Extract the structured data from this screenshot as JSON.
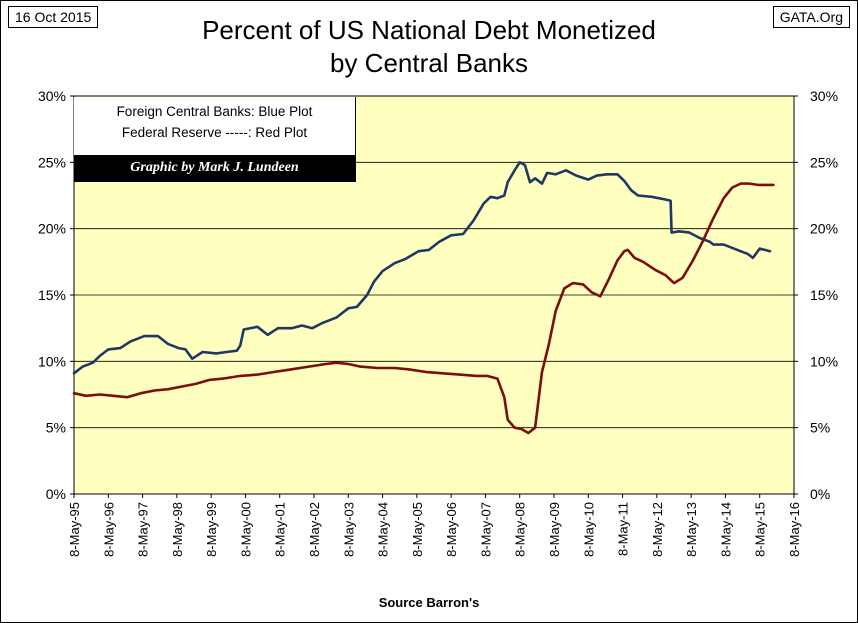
{
  "header": {
    "date": "16 Oct 2015",
    "source": "GATA.Org",
    "title_line1": "Percent of US National Debt Monetized",
    "title_line2": "by Central Banks"
  },
  "legend": {
    "line1": "Foreign Central Banks:  Blue Plot",
    "line2": "Federal Reserve -----:  Red Plot",
    "credit": "Graphic by Mark J. Lundeen"
  },
  "colors": {
    "plot_background": "#FFFFC0",
    "foreign_central_banks": "#1F3864",
    "federal_reserve": "#7B0E0E",
    "grid": "#000000"
  },
  "chart_data": {
    "type": "line",
    "title": "Percent of US National Debt Monetized by Central Banks",
    "xlabel": "Source Barron's",
    "ylabel": "",
    "ylim": [
      0,
      30
    ],
    "x_range": [
      1995.35,
      2016.35
    ],
    "grid": "horizontal",
    "legend_position": "top-left",
    "y_ticks": [
      "0%",
      "5%",
      "10%",
      "15%",
      "20%",
      "25%",
      "30%"
    ],
    "x_ticks": [
      "8-May-95",
      "8-May-96",
      "8-May-97",
      "8-May-98",
      "8-May-99",
      "8-May-00",
      "8-May-01",
      "8-May-02",
      "8-May-03",
      "8-May-04",
      "8-May-05",
      "8-May-06",
      "8-May-07",
      "8-May-08",
      "8-May-09",
      "8-May-10",
      "8-May-11",
      "8-May-12",
      "8-May-13",
      "8-May-14",
      "8-May-15",
      "8-May-16"
    ],
    "series": [
      {
        "key": "foreign",
        "points": [
          [
            1995.35,
            9.1
          ],
          [
            1995.6,
            9.6
          ],
          [
            1995.9,
            9.9
          ],
          [
            1996.1,
            10.4
          ],
          [
            1996.35,
            10.9
          ],
          [
            1996.7,
            11.0
          ],
          [
            1997.0,
            11.5
          ],
          [
            1997.4,
            11.9
          ],
          [
            1997.8,
            11.9
          ],
          [
            1998.1,
            11.3
          ],
          [
            1998.4,
            11.0
          ],
          [
            1998.6,
            10.9
          ],
          [
            1998.8,
            10.2
          ],
          [
            1999.1,
            10.7
          ],
          [
            1999.5,
            10.6
          ],
          [
            1999.8,
            10.7
          ],
          [
            2000.1,
            10.8
          ],
          [
            2000.2,
            11.2
          ],
          [
            2000.3,
            12.4
          ],
          [
            2000.7,
            12.6
          ],
          [
            2001.0,
            12.0
          ],
          [
            2001.3,
            12.5
          ],
          [
            2001.7,
            12.5
          ],
          [
            2002.0,
            12.7
          ],
          [
            2002.3,
            12.5
          ],
          [
            2002.6,
            12.9
          ],
          [
            2003.0,
            13.3
          ],
          [
            2003.35,
            14.0
          ],
          [
            2003.6,
            14.1
          ],
          [
            2003.9,
            15.0
          ],
          [
            2004.1,
            16.0
          ],
          [
            2004.35,
            16.8
          ],
          [
            2004.7,
            17.4
          ],
          [
            2005.0,
            17.7
          ],
          [
            2005.4,
            18.3
          ],
          [
            2005.7,
            18.4
          ],
          [
            2006.0,
            19.0
          ],
          [
            2006.35,
            19.5
          ],
          [
            2006.7,
            19.6
          ],
          [
            2007.0,
            20.6
          ],
          [
            2007.3,
            21.9
          ],
          [
            2007.5,
            22.4
          ],
          [
            2007.7,
            22.3
          ],
          [
            2007.9,
            22.5
          ],
          [
            2008.0,
            23.5
          ],
          [
            2008.2,
            24.4
          ],
          [
            2008.35,
            25.0
          ],
          [
            2008.5,
            24.8
          ],
          [
            2008.65,
            23.5
          ],
          [
            2008.8,
            23.8
          ],
          [
            2009.0,
            23.4
          ],
          [
            2009.15,
            24.2
          ],
          [
            2009.4,
            24.1
          ],
          [
            2009.7,
            24.4
          ],
          [
            2010.0,
            24.0
          ],
          [
            2010.35,
            23.7
          ],
          [
            2010.6,
            24.0
          ],
          [
            2010.9,
            24.1
          ],
          [
            2011.2,
            24.1
          ],
          [
            2011.4,
            23.6
          ],
          [
            2011.6,
            22.9
          ],
          [
            2011.8,
            22.5
          ],
          [
            2012.2,
            22.4
          ],
          [
            2012.6,
            22.2
          ],
          [
            2012.75,
            22.1
          ],
          [
            2012.78,
            19.7
          ],
          [
            2013.0,
            19.8
          ],
          [
            2013.3,
            19.7
          ],
          [
            2013.6,
            19.3
          ],
          [
            2013.9,
            19.0
          ],
          [
            2014.0,
            18.8
          ],
          [
            2014.3,
            18.8
          ],
          [
            2014.7,
            18.4
          ],
          [
            2015.0,
            18.1
          ],
          [
            2015.15,
            17.8
          ],
          [
            2015.35,
            18.5
          ],
          [
            2015.5,
            18.4
          ],
          [
            2015.65,
            18.3
          ]
        ]
      },
      {
        "key": "fed",
        "points": [
          [
            1995.35,
            7.6
          ],
          [
            1995.7,
            7.4
          ],
          [
            1996.1,
            7.5
          ],
          [
            1996.5,
            7.4
          ],
          [
            1996.9,
            7.3
          ],
          [
            1997.3,
            7.6
          ],
          [
            1997.7,
            7.8
          ],
          [
            1998.1,
            7.9
          ],
          [
            1998.5,
            8.1
          ],
          [
            1998.9,
            8.3
          ],
          [
            1999.3,
            8.6
          ],
          [
            1999.7,
            8.7
          ],
          [
            2000.2,
            8.9
          ],
          [
            2000.7,
            9.0
          ],
          [
            2001.2,
            9.2
          ],
          [
            2001.7,
            9.4
          ],
          [
            2002.2,
            9.6
          ],
          [
            2002.7,
            9.8
          ],
          [
            2003.0,
            9.9
          ],
          [
            2003.35,
            9.8
          ],
          [
            2003.7,
            9.6
          ],
          [
            2004.2,
            9.5
          ],
          [
            2004.7,
            9.5
          ],
          [
            2005.1,
            9.4
          ],
          [
            2005.6,
            9.2
          ],
          [
            2006.1,
            9.1
          ],
          [
            2006.6,
            9.0
          ],
          [
            2007.1,
            8.9
          ],
          [
            2007.4,
            8.9
          ],
          [
            2007.7,
            8.7
          ],
          [
            2007.9,
            7.3
          ],
          [
            2008.0,
            5.6
          ],
          [
            2008.2,
            5.0
          ],
          [
            2008.4,
            4.9
          ],
          [
            2008.6,
            4.6
          ],
          [
            2008.8,
            5.0
          ],
          [
            2009.0,
            9.2
          ],
          [
            2009.2,
            11.3
          ],
          [
            2009.4,
            13.8
          ],
          [
            2009.65,
            15.5
          ],
          [
            2009.9,
            15.9
          ],
          [
            2010.2,
            15.8
          ],
          [
            2010.45,
            15.2
          ],
          [
            2010.7,
            14.9
          ],
          [
            2010.95,
            16.2
          ],
          [
            2011.2,
            17.6
          ],
          [
            2011.4,
            18.3
          ],
          [
            2011.5,
            18.4
          ],
          [
            2011.7,
            17.8
          ],
          [
            2011.95,
            17.5
          ],
          [
            2012.3,
            16.9
          ],
          [
            2012.6,
            16.5
          ],
          [
            2012.85,
            15.9
          ],
          [
            2013.1,
            16.3
          ],
          [
            2013.4,
            17.6
          ],
          [
            2013.7,
            19.1
          ],
          [
            2014.0,
            20.8
          ],
          [
            2014.3,
            22.3
          ],
          [
            2014.55,
            23.1
          ],
          [
            2014.8,
            23.4
          ],
          [
            2015.05,
            23.4
          ],
          [
            2015.3,
            23.3
          ],
          [
            2015.55,
            23.3
          ],
          [
            2015.75,
            23.3
          ]
        ]
      }
    ]
  }
}
